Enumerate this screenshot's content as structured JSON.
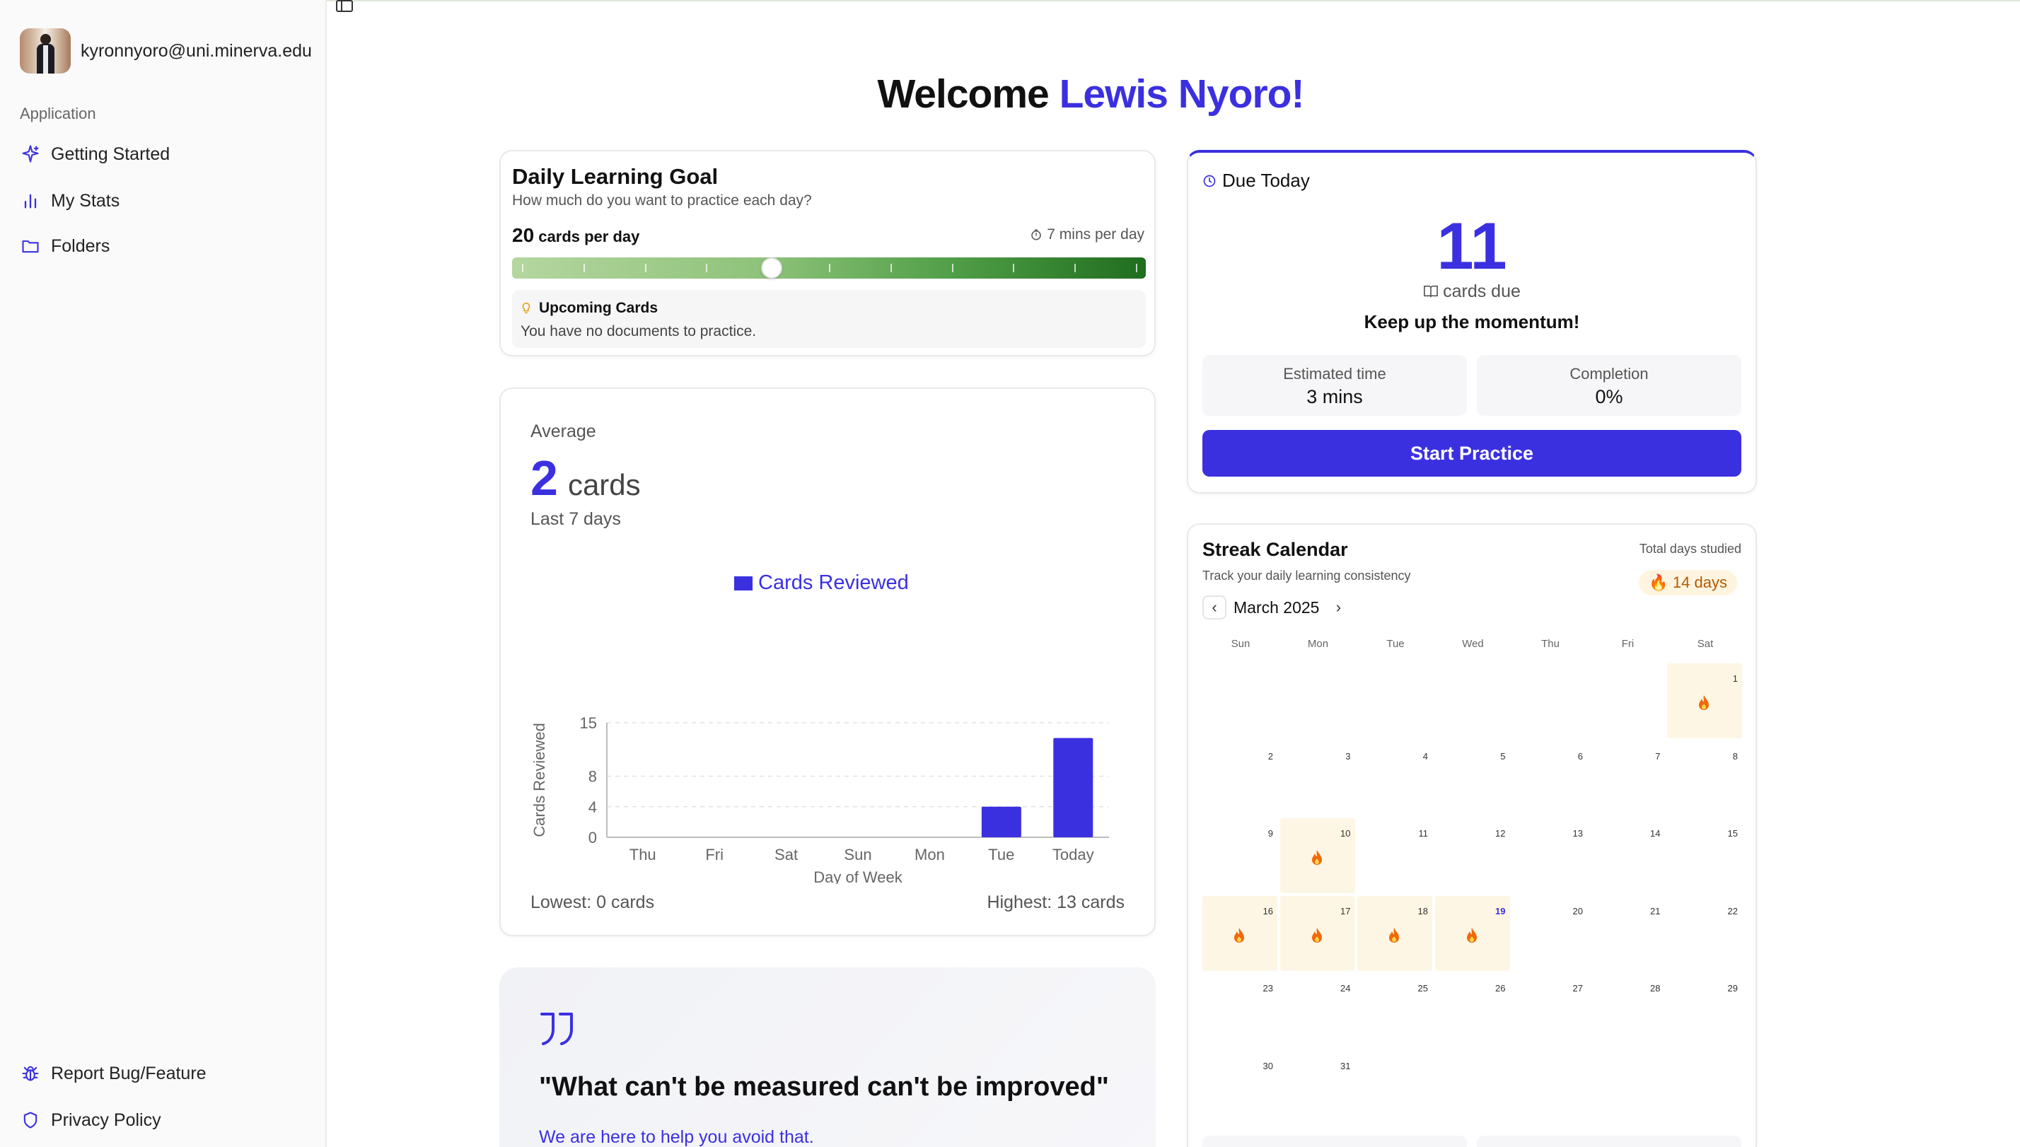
{
  "user": {
    "email": "kyronnyoro@uni.minerva.edu"
  },
  "sidebar": {
    "section_label": "Application",
    "items": [
      {
        "label": "Getting Started",
        "icon": "sparkle-icon"
      },
      {
        "label": "My Stats",
        "icon": "bar-chart-icon"
      },
      {
        "label": "Folders",
        "icon": "folder-icon"
      }
    ],
    "footer_items": [
      {
        "label": "Report Bug/Feature",
        "icon": "bug-icon"
      },
      {
        "label": "Privacy Policy",
        "icon": "shield-icon"
      }
    ]
  },
  "welcome": {
    "prefix": "Welcome",
    "name": "Lewis Nyoro!"
  },
  "daily_goal": {
    "title": "Daily Learning Goal",
    "subtitle": "How much do you want to practice each day?",
    "cards_count": "20",
    "cards_suffix": "cards per day",
    "minutes": "7 mins per day",
    "slider_fraction": 0.41,
    "upcoming_title": "Upcoming Cards",
    "upcoming_text": "You have no documents to practice."
  },
  "average": {
    "label": "Average",
    "value": "2",
    "unit": "cards",
    "period": "Last 7 days",
    "lowest": "Lowest: 0 cards",
    "highest": "Highest: 13 cards"
  },
  "chart_data": {
    "type": "bar",
    "legend": "Cards Reviewed",
    "categories": [
      "Thu",
      "Fri",
      "Sat",
      "Sun",
      "Mon",
      "Tue",
      "Today"
    ],
    "series": [
      {
        "name": "Cards Reviewed",
        "values": [
          0,
          0,
          0,
          0,
          0,
          4,
          13
        ]
      }
    ],
    "xlabel": "Day of Week",
    "ylabel": "Cards Reviewed",
    "yticks": [
      0,
      4,
      8,
      15
    ],
    "ylim": [
      0,
      15
    ],
    "bar_color": "#3b30e0",
    "legend_position": "top-center",
    "grid": true
  },
  "quote": {
    "text": "\"What can't be measured can't be improved\"",
    "subtext": "We are here to help you avoid that."
  },
  "due_today": {
    "title": "Due Today",
    "count": "11",
    "cards_label": "cards due",
    "encouragement": "Keep up the momentum!",
    "estimated_label": "Estimated time",
    "estimated_value": "3 mins",
    "completion_label": "Completion",
    "completion_value": "0%",
    "start_button": "Start Practice"
  },
  "streak": {
    "title": "Streak Calendar",
    "subtitle": "Track your daily learning consistency",
    "total_label": "Total days studied",
    "total_value": "14 days",
    "month": "March 2025",
    "weekdays": [
      "Sun",
      "Mon",
      "Tue",
      "Wed",
      "Thu",
      "Fri",
      "Sat"
    ],
    "first_weekday_index": 6,
    "days_in_month": 31,
    "studied_days": [
      1,
      10,
      16,
      17,
      18,
      19
    ],
    "today": 19
  },
  "colors": {
    "accent": "#3b30e0",
    "streak_bg": "#fdf6e4",
    "flame": "#f0690a"
  }
}
